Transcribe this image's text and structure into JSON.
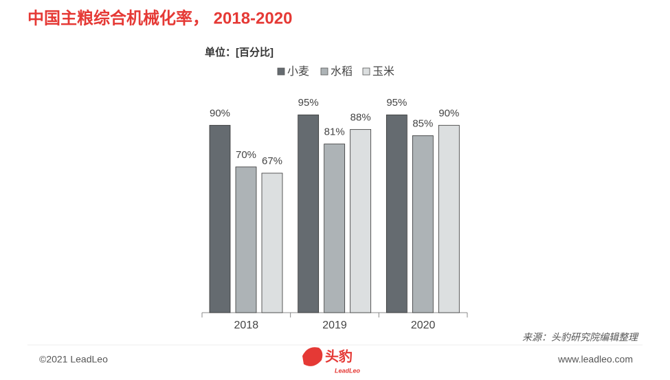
{
  "chart_data": {
    "type": "bar",
    "title": "中国主粮综合机械化率， 2018-2020",
    "unit": "单位：[百分比]",
    "categories": [
      "2018",
      "2019",
      "2020"
    ],
    "series": [
      {
        "name": "小麦",
        "color": "#656b70",
        "values": [
          90,
          95,
          95
        ],
        "value_labels": [
          "90%",
          "95%",
          "95%"
        ]
      },
      {
        "name": "水稻",
        "color": "#adb3b6",
        "values": [
          70,
          81,
          85
        ],
        "value_labels": [
          "70%",
          "81%",
          "85%"
        ]
      },
      {
        "name": "玉米",
        "color": "#dcdfe0",
        "values": [
          67,
          88,
          90
        ],
        "value_labels": [
          "67%",
          "88%",
          "90%"
        ]
      }
    ],
    "ylim": [
      0,
      100
    ],
    "source": "来源：头豹研究院编辑整理"
  },
  "footer": {
    "copyright": "©2021 LeadLeo",
    "logo_text": "头豹",
    "logo_sub": "LeadLeo",
    "website": "www.leadleo.com"
  }
}
